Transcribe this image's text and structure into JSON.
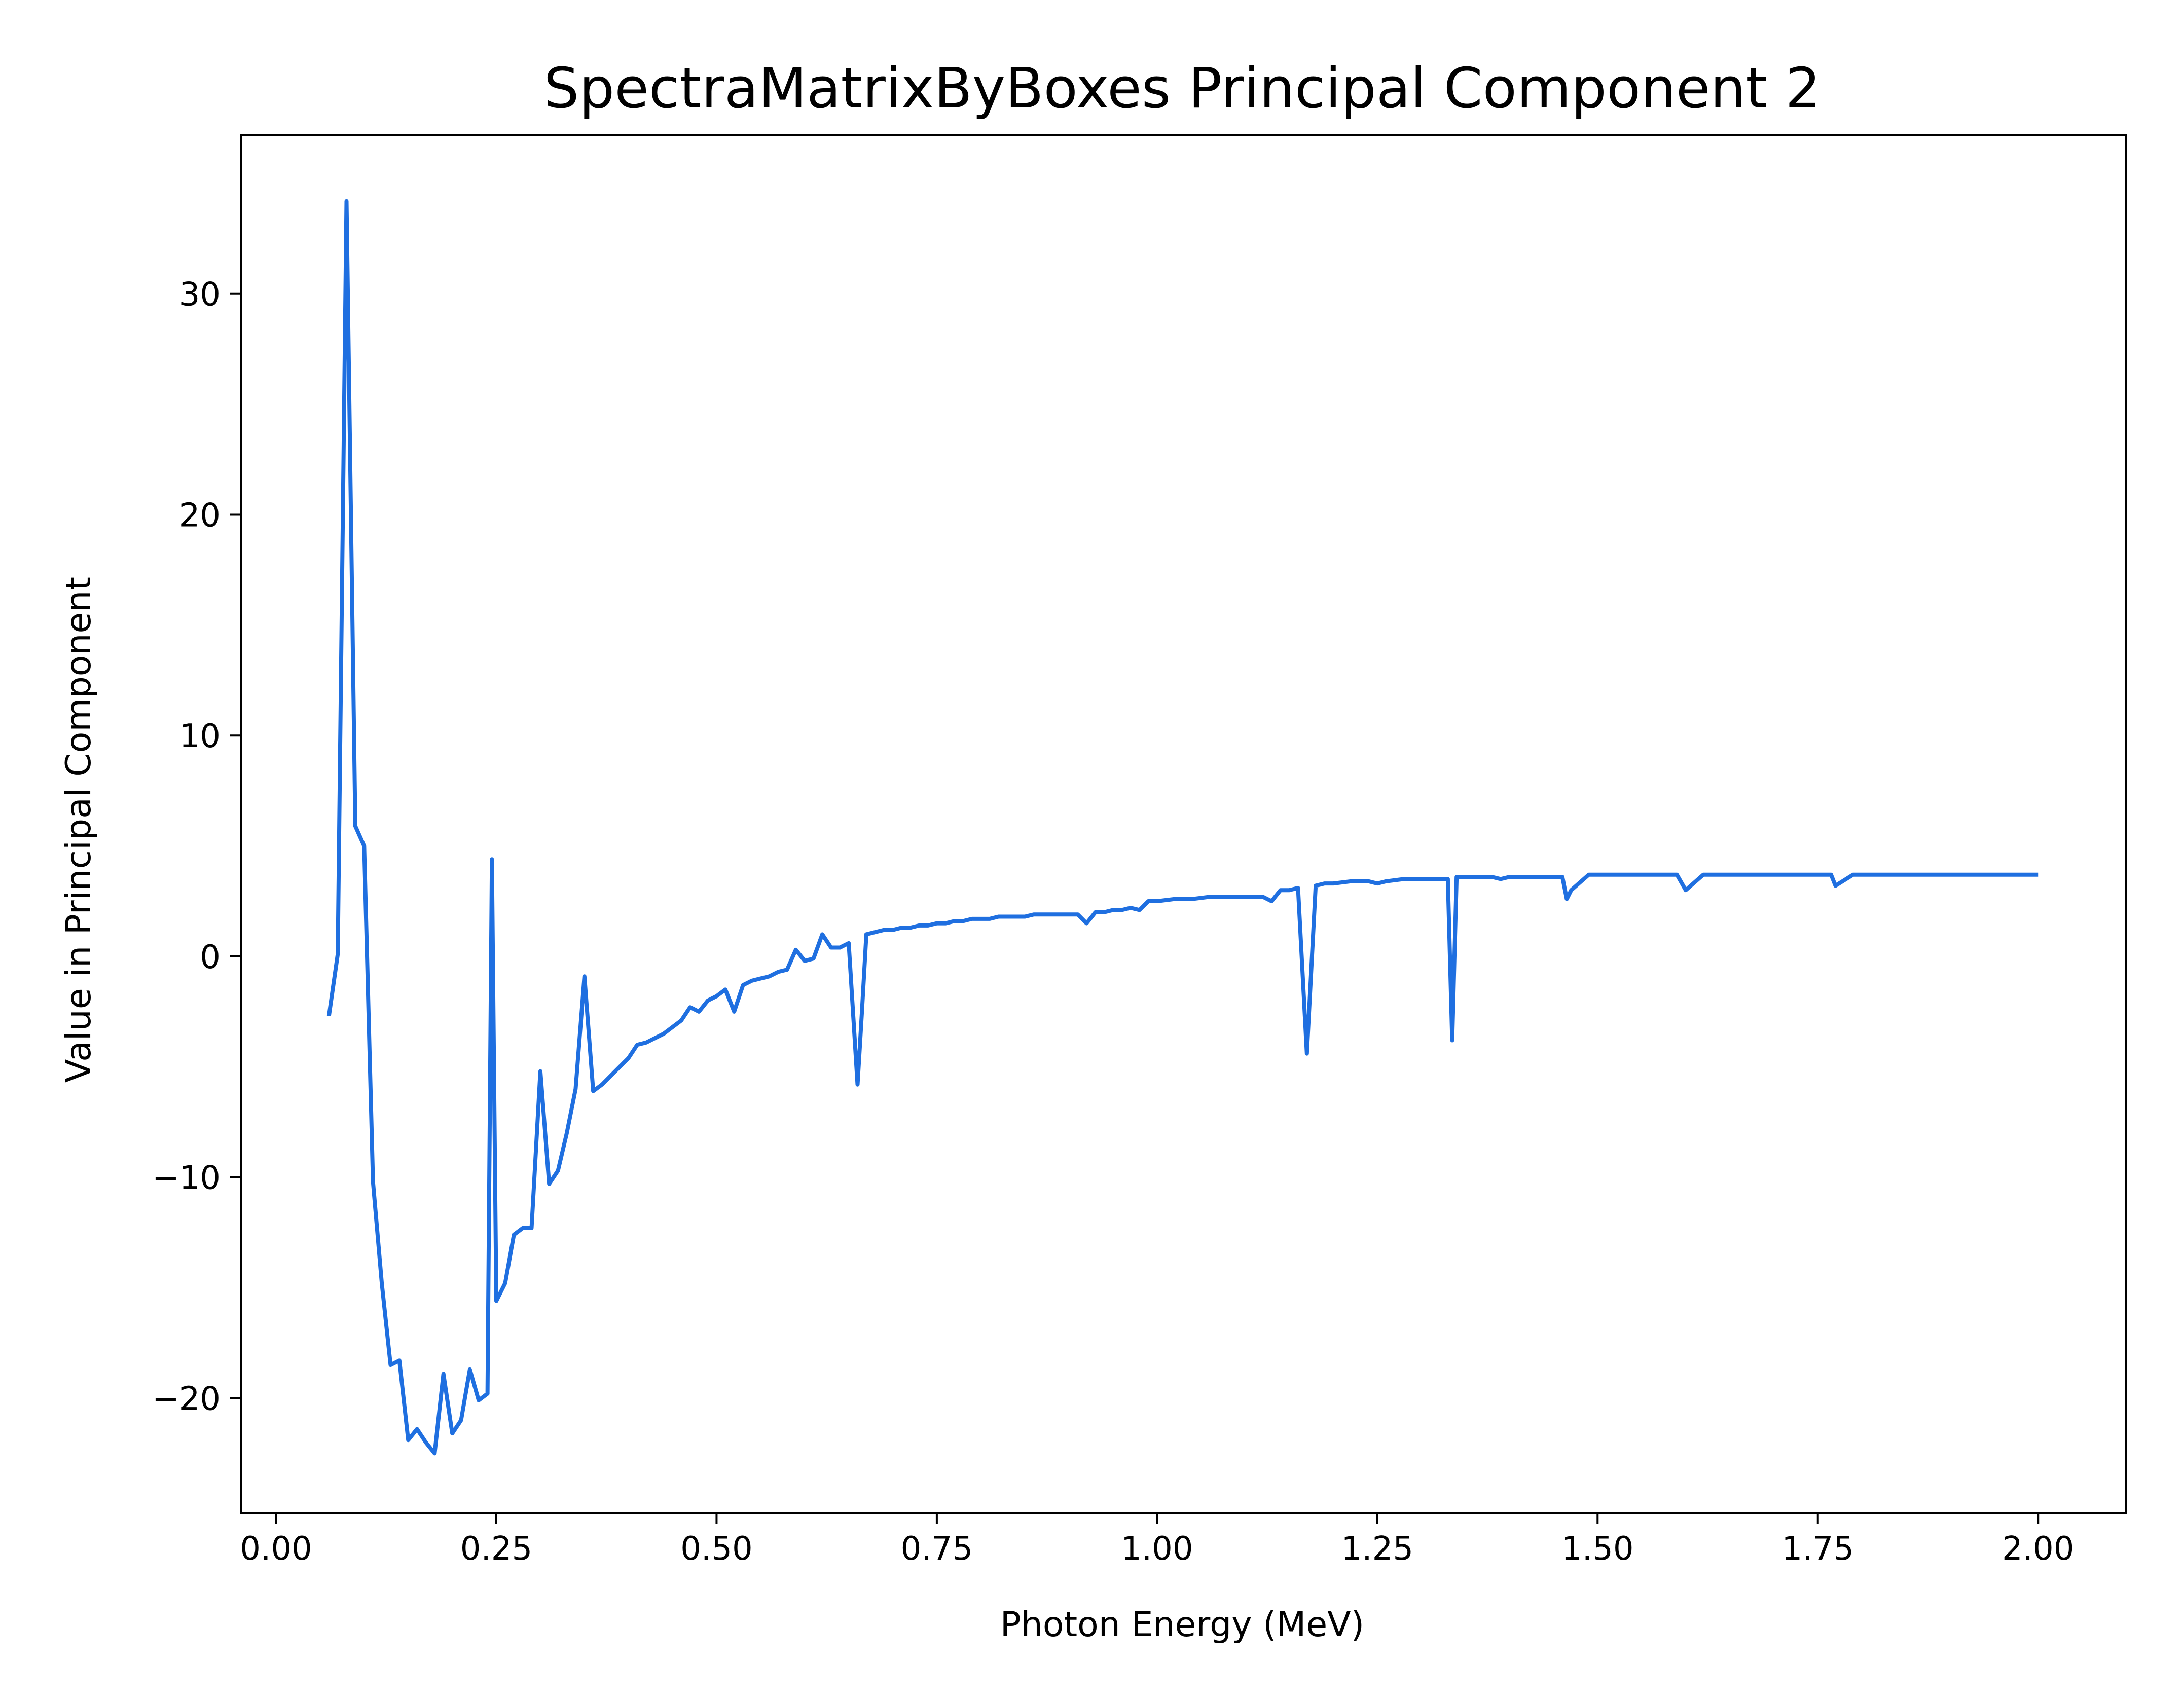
{
  "chart_data": {
    "type": "line",
    "title": "SpectraMatrixByBoxes Principal Component 2",
    "xlabel": "Photon Energy (MeV)",
    "ylabel": "Value in Principal Component",
    "xlim": [
      -0.04,
      2.1
    ],
    "ylim": [
      -25.2,
      37.2
    ],
    "xticks": [
      0.0,
      0.25,
      0.5,
      0.75,
      1.0,
      1.25,
      1.5,
      1.75,
      2.0
    ],
    "xtick_labels": [
      "0.00",
      "0.25",
      "0.50",
      "0.75",
      "1.00",
      "1.25",
      "1.50",
      "1.75",
      "2.00"
    ],
    "yticks": [
      -20,
      -10,
      0,
      10,
      20,
      30
    ],
    "ytick_labels": [
      "−20",
      "−10",
      "0",
      "10",
      "20",
      "30"
    ],
    "grid": false,
    "line_color": "#1f6fe0",
    "series": [
      {
        "x": [
          0.06,
          0.07,
          0.08,
          0.09,
          0.1,
          0.11,
          0.12,
          0.13,
          0.14,
          0.15,
          0.16,
          0.17,
          0.18,
          0.19,
          0.2,
          0.21,
          0.22,
          0.23,
          0.24,
          0.245,
          0.25,
          0.26,
          0.27,
          0.28,
          0.29,
          0.3,
          0.31,
          0.32,
          0.33,
          0.34,
          0.35,
          0.36,
          0.37,
          0.38,
          0.39,
          0.4,
          0.41,
          0.42,
          0.43,
          0.44,
          0.45,
          0.46,
          0.47,
          0.48,
          0.49,
          0.5,
          0.51,
          0.52,
          0.53,
          0.54,
          0.55,
          0.56,
          0.57,
          0.58,
          0.59,
          0.6,
          0.61,
          0.62,
          0.63,
          0.64,
          0.65,
          0.66,
          0.665,
          0.67,
          0.68,
          0.69,
          0.7,
          0.71,
          0.72,
          0.73,
          0.74,
          0.75,
          0.76,
          0.77,
          0.78,
          0.79,
          0.8,
          0.81,
          0.82,
          0.83,
          0.84,
          0.85,
          0.86,
          0.87,
          0.88,
          0.89,
          0.9,
          0.91,
          0.92,
          0.93,
          0.94,
          0.95,
          0.96,
          0.97,
          0.98,
          0.99,
          1.0,
          1.02,
          1.04,
          1.06,
          1.08,
          1.1,
          1.12,
          1.13,
          1.14,
          1.15,
          1.16,
          1.17,
          1.18,
          1.19,
          1.2,
          1.22,
          1.24,
          1.25,
          1.26,
          1.28,
          1.3,
          1.32,
          1.33,
          1.335,
          1.34,
          1.36,
          1.38,
          1.39,
          1.4,
          1.42,
          1.44,
          1.45,
          1.46,
          1.465,
          1.47,
          1.49,
          1.51,
          1.53,
          1.55,
          1.57,
          1.58,
          1.59,
          1.6,
          1.62,
          1.64,
          1.66,
          1.68,
          1.7,
          1.72,
          1.74,
          1.76,
          1.765,
          1.77,
          1.79,
          1.81,
          1.83,
          1.85,
          1.86,
          1.87,
          1.89,
          1.91,
          1.93,
          1.95,
          1.97,
          1.99,
          2.0
        ],
        "y": [
          -2.7,
          0.1,
          34.2,
          5.9,
          5.0,
          -10.2,
          -14.8,
          -18.5,
          -18.3,
          -21.9,
          -21.4,
          -22.0,
          -22.5,
          -18.9,
          -21.6,
          -21.0,
          -18.7,
          -20.1,
          -19.8,
          4.4,
          -15.6,
          -14.8,
          -12.6,
          -12.3,
          -12.3,
          -5.2,
          -10.3,
          -9.7,
          -8.0,
          -6.0,
          -0.9,
          -6.1,
          -5.8,
          -5.4,
          -5.0,
          -4.6,
          -4.0,
          -3.9,
          -3.7,
          -3.5,
          -3.2,
          -2.9,
          -2.3,
          -2.5,
          -2.0,
          -1.8,
          -1.5,
          -2.5,
          -1.3,
          -1.1,
          -1.0,
          -0.9,
          -0.7,
          -0.6,
          0.3,
          -0.2,
          -0.1,
          1.0,
          0.4,
          0.4,
          0.6,
          -5.8,
          -2.5,
          1.0,
          1.1,
          1.2,
          1.2,
          1.3,
          1.3,
          1.4,
          1.4,
          1.5,
          1.5,
          1.6,
          1.6,
          1.7,
          1.7,
          1.7,
          1.8,
          1.8,
          1.8,
          1.8,
          1.9,
          1.9,
          1.9,
          1.9,
          1.9,
          1.9,
          1.5,
          2.0,
          2.0,
          2.1,
          2.1,
          2.2,
          2.1,
          2.5,
          2.5,
          2.6,
          2.6,
          2.7,
          2.7,
          2.7,
          2.7,
          2.5,
          3.0,
          3.0,
          3.1,
          -4.4,
          3.2,
          3.3,
          3.3,
          3.4,
          3.4,
          3.3,
          3.4,
          3.5,
          3.5,
          3.5,
          3.5,
          -3.8,
          3.6,
          3.6,
          3.6,
          3.5,
          3.6,
          3.6,
          3.6,
          3.6,
          3.6,
          2.6,
          3.0,
          3.7,
          3.7,
          3.7,
          3.7,
          3.7,
          3.7,
          3.7,
          3.0,
          3.7,
          3.7,
          3.7,
          3.7,
          3.7,
          3.7,
          3.7,
          3.7,
          3.7,
          3.2,
          3.7,
          3.7,
          3.7,
          3.7,
          3.7,
          3.7,
          3.7,
          3.7,
          3.7,
          3.7,
          3.7,
          3.7,
          3.7
        ]
      }
    ]
  }
}
